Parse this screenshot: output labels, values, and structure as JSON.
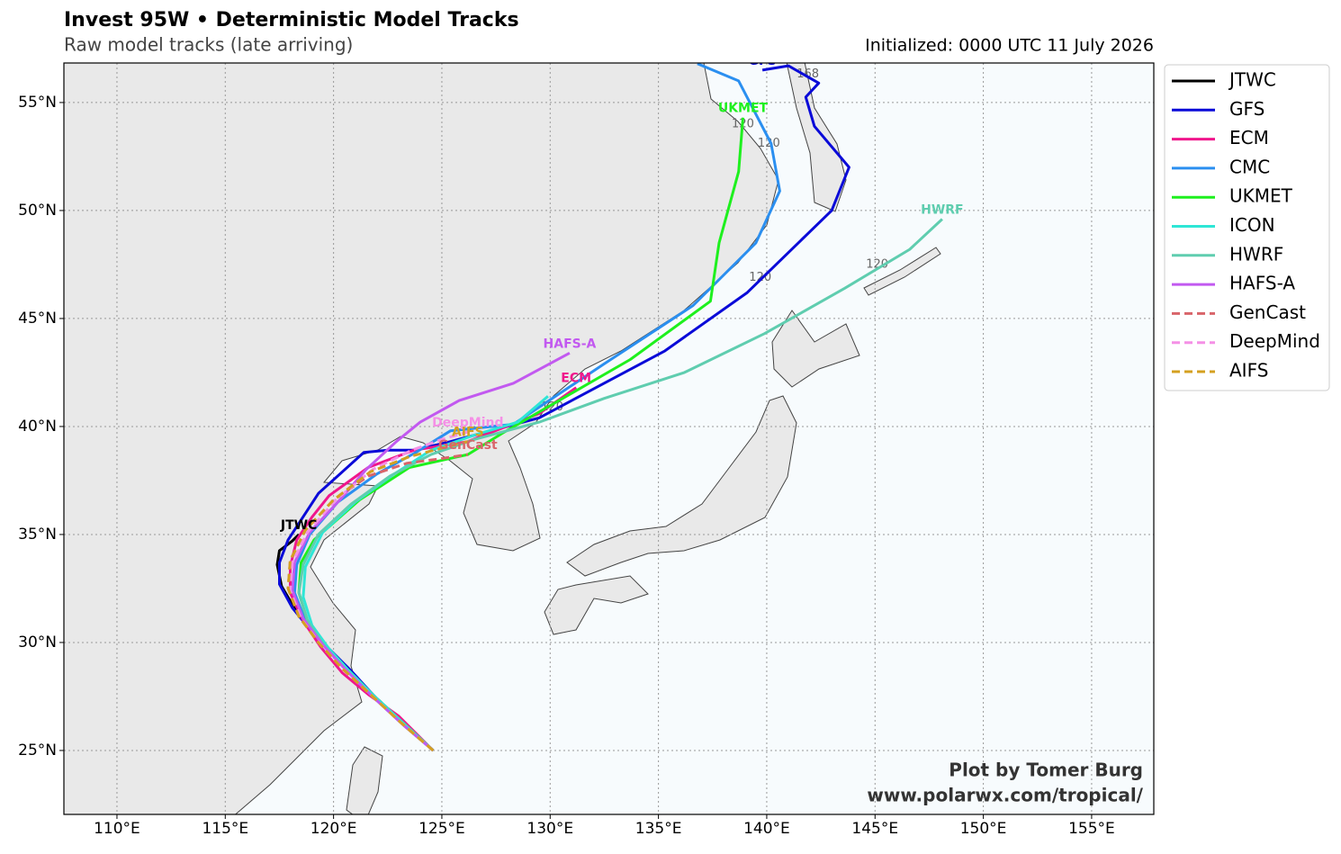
{
  "chart_data": {
    "type": "track-map",
    "title": "Invest 95W • Deterministic Model Tracks",
    "subtitle": "Raw model tracks (late arriving)",
    "initialized": "Initialized: 0000 UTC 11 July 2026",
    "credit": [
      "Plot by Tomer Burg",
      "www.polarwx.com/tropical/"
    ],
    "xlim": [
      107.55,
      157.87
    ],
    "ylim": [
      22.04,
      56.83
    ],
    "grid": true,
    "legend": "outside-right",
    "xticks": [
      {
        "value": 110,
        "label": "110°E"
      },
      {
        "value": 115,
        "label": "115°E"
      },
      {
        "value": 120,
        "label": "120°E"
      },
      {
        "value": 125,
        "label": "125°E"
      },
      {
        "value": 130,
        "label": "130°E"
      },
      {
        "value": 135,
        "label": "135°E"
      },
      {
        "value": 140,
        "label": "140°E"
      },
      {
        "value": 145,
        "label": "145°E"
      },
      {
        "value": 150,
        "label": "150°E"
      },
      {
        "value": 155,
        "label": "155°E"
      }
    ],
    "yticks": [
      {
        "value": 25,
        "label": "25°N"
      },
      {
        "value": 30,
        "label": "30°N"
      },
      {
        "value": 35,
        "label": "35°N"
      },
      {
        "value": 40,
        "label": "40°N"
      },
      {
        "value": 45,
        "label": "45°N"
      },
      {
        "value": 50,
        "label": "50°N"
      },
      {
        "value": 55,
        "label": "55°N"
      }
    ],
    "series": [
      {
        "name": "JTWC",
        "color": "#000000",
        "style": "solid",
        "labeled": true,
        "x": [
          124.6,
          123.3,
          121.9,
          120.8,
          120.0,
          119.2,
          118.3,
          117.6,
          117.4,
          117.5,
          118.1,
          118.4
        ],
        "values": [
          25.0,
          26.2,
          27.5,
          28.6,
          29.4,
          30.4,
          31.4,
          32.6,
          33.6,
          34.25,
          34.7,
          35.0
        ]
      },
      {
        "name": "GFS",
        "color": "#0a0ad8",
        "style": "solid",
        "labeled": true,
        "x": [
          124.6,
          123.3,
          121.9,
          120.8,
          119.9,
          119.0,
          118.1,
          117.5,
          117.5,
          117.9,
          119.3,
          121.4,
          122.5,
          123.7,
          125.4,
          129.5,
          135.3,
          139.1,
          143.0,
          143.8,
          142.2,
          141.8,
          142.4,
          141.0,
          139.8
        ],
        "values": [
          25.0,
          26.2,
          27.5,
          28.7,
          29.6,
          30.5,
          31.6,
          32.7,
          33.7,
          34.75,
          36.9,
          38.8,
          38.9,
          38.9,
          39.3,
          40.4,
          43.5,
          46.2,
          50.0,
          52.0,
          53.9,
          55.25,
          55.9,
          56.7,
          56.5
        ]
      },
      {
        "name": "ECM",
        "color": "#f0168c",
        "style": "solid",
        "labeled": true,
        "x": [
          124.6,
          123.0,
          121.6,
          120.4,
          119.4,
          118.6,
          118.0,
          118.0,
          118.3,
          119.0,
          119.8,
          121.6,
          123.7,
          126.2,
          129.5,
          131.2
        ],
        "values": [
          25.0,
          26.6,
          27.6,
          28.6,
          29.8,
          31.0,
          32.3,
          33.5,
          34.75,
          35.8,
          36.8,
          38.1,
          38.9,
          39.3,
          40.6,
          41.8
        ]
      },
      {
        "name": "CMC",
        "color": "#2b8ff0",
        "style": "solid",
        "labeled": false,
        "x": [
          124.6,
          123.3,
          121.9,
          120.6,
          119.6,
          118.7,
          118.2,
          118.3,
          118.9,
          120.2,
          122.0,
          123.8,
          125.4,
          128.3,
          132.5,
          136.6,
          139.5,
          140.6,
          140.2,
          138.7,
          136.8
        ],
        "values": [
          25.0,
          26.2,
          27.5,
          28.8,
          29.9,
          31.0,
          32.3,
          33.6,
          35.0,
          36.5,
          37.8,
          38.8,
          39.8,
          40.1,
          42.9,
          45.6,
          48.5,
          50.9,
          53.1,
          56.0,
          56.8
        ]
      },
      {
        "name": "UKMET",
        "color": "#1ef01e",
        "style": "solid",
        "labeled": true,
        "x": [
          124.6,
          123.3,
          121.9,
          120.7,
          119.7,
          118.8,
          118.4,
          118.5,
          119.1,
          121.2,
          123.5,
          126.2,
          127.9,
          133.7,
          137.4,
          137.8,
          138.7,
          138.9
        ],
        "values": [
          25.0,
          26.2,
          27.5,
          28.7,
          29.8,
          31.0,
          32.3,
          33.7,
          34.75,
          36.6,
          38.1,
          38.7,
          39.75,
          43.1,
          45.8,
          48.5,
          51.8,
          54.3
        ]
      },
      {
        "name": "ICON",
        "color": "#2ee6d6",
        "style": "solid",
        "labeled": false,
        "x": [
          124.6,
          123.3,
          121.9,
          120.7,
          119.8,
          119.0,
          118.6,
          118.7,
          119.5,
          121.0,
          122.8,
          124.5,
          126.5,
          128.5,
          129.9
        ],
        "values": [
          25.0,
          26.2,
          27.5,
          28.7,
          29.7,
          30.8,
          32.1,
          33.5,
          35.1,
          36.5,
          37.8,
          38.9,
          39.6,
          40.2,
          41.4
        ]
      },
      {
        "name": "HWRF",
        "color": "#5fcdaf",
        "style": "solid",
        "labeled": true,
        "x": [
          124.6,
          123.2,
          121.8,
          120.6,
          119.6,
          118.8,
          118.4,
          118.6,
          119.3,
          120.8,
          122.6,
          124.5,
          126.5,
          129.5,
          132.5,
          136.2,
          139.9,
          143.6,
          146.6,
          148.1
        ],
        "values": [
          25.0,
          26.2,
          27.5,
          28.7,
          29.8,
          31.0,
          32.3,
          33.6,
          35.0,
          36.4,
          37.7,
          38.7,
          39.4,
          40.2,
          41.3,
          42.5,
          44.3,
          46.4,
          48.2,
          49.6
        ]
      },
      {
        "name": "HAFS-A",
        "color": "#c259f0",
        "style": "solid",
        "labeled": true,
        "x": [
          124.6,
          123.2,
          121.8,
          120.5,
          119.5,
          118.6,
          118.1,
          118.2,
          118.9,
          120.2,
          121.5,
          122.9,
          124.0,
          125.8,
          128.3,
          130.9
        ],
        "values": [
          25.0,
          26.2,
          27.5,
          28.8,
          29.9,
          31.1,
          32.4,
          33.7,
          35.1,
          36.5,
          38.0,
          39.3,
          40.2,
          41.2,
          42.0,
          43.4
        ]
      },
      {
        "name": "GenCast",
        "color": "#d9656a",
        "style": "dashed",
        "labeled": true,
        "x": [
          124.6,
          123.1,
          121.7,
          120.4,
          119.3,
          118.4,
          117.9,
          118.0,
          118.7,
          120.0,
          121.6,
          123.4,
          124.9,
          126.2
        ],
        "values": [
          25.0,
          26.3,
          27.6,
          28.8,
          30.0,
          31.2,
          32.5,
          33.8,
          35.2,
          36.6,
          37.7,
          38.3,
          38.5,
          38.7
        ]
      },
      {
        "name": "DeepMind",
        "color": "#f590e6",
        "style": "dashed",
        "labeled": true,
        "x": [
          124.6,
          123.1,
          121.7,
          120.4,
          119.4,
          118.5,
          118.0,
          118.1,
          118.8,
          120.1,
          121.8,
          123.6,
          125.0,
          126.2
        ],
        "values": [
          25.0,
          26.3,
          27.6,
          28.8,
          29.9,
          31.1,
          32.4,
          33.7,
          35.1,
          36.6,
          38.0,
          38.9,
          39.4,
          39.75
        ]
      },
      {
        "name": "AIFS",
        "color": "#d4a020",
        "style": "dashed",
        "labeled": true,
        "x": [
          124.6,
          123.1,
          121.7,
          120.4,
          119.3,
          118.4,
          117.9,
          118.0,
          118.7,
          120.0,
          121.7,
          123.5,
          125.0,
          126.2
        ],
        "values": [
          25.0,
          26.3,
          27.6,
          28.8,
          30.0,
          31.2,
          32.5,
          33.8,
          35.2,
          36.6,
          37.9,
          38.6,
          39.0,
          39.3
        ]
      }
    ],
    "annotations": [
      {
        "text": "168",
        "x": 141.9,
        "y": 56.3
      },
      {
        "text": "120",
        "x": 138.9,
        "y": 54.0
      },
      {
        "text": "120",
        "x": 140.1,
        "y": 53.1
      },
      {
        "text": "120",
        "x": 145.1,
        "y": 47.5
      },
      {
        "text": "120",
        "x": 139.7,
        "y": 46.9
      },
      {
        "text": "120",
        "x": 130.1,
        "y": 40.9
      }
    ]
  }
}
